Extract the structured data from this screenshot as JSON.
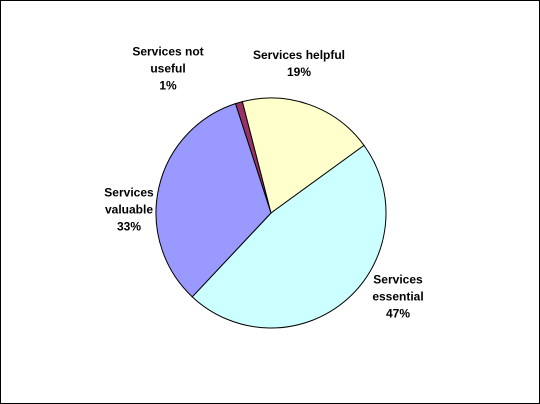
{
  "chart_data": {
    "type": "pie",
    "slices": [
      {
        "label_lines": [
          "Services not",
          "useful"
        ],
        "percent_label": "1%",
        "value": 1,
        "color": "#993366"
      },
      {
        "label_lines": [
          "Services helpful"
        ],
        "percent_label": "19%",
        "value": 19,
        "color": "#FFFFCC"
      },
      {
        "label_lines": [
          "Services",
          "essential"
        ],
        "percent_label": "47%",
        "value": 47,
        "color": "#CCFFFF"
      },
      {
        "label_lines": [
          "Services",
          "valuable"
        ],
        "percent_label": "33%",
        "value": 33,
        "color": "#9999FF"
      }
    ],
    "legend": "none",
    "data_labels": "outside"
  }
}
